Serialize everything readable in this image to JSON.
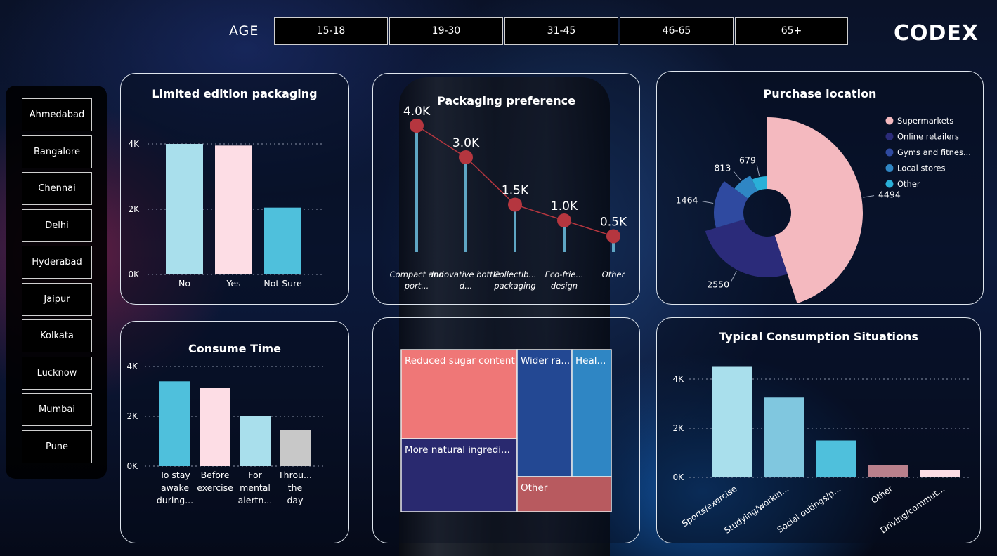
{
  "age": {
    "label": "AGE",
    "buttons": [
      "15-18",
      "19-30",
      "31-45",
      "46-65",
      "65+"
    ]
  },
  "logo": "CODEX",
  "cities": [
    "Ahmedabad",
    "Bangalore",
    "Chennai",
    "Delhi",
    "Hyderabad",
    "Jaipur",
    "Kolkata",
    "Lucknow",
    "Mumbai",
    "Pune"
  ],
  "colors": {
    "light_blue": "#a9dfec",
    "pink": "#fddde5",
    "cyan": "#4fc0dc",
    "grey": "#c8c8c8",
    "red": "#b5363f",
    "pie_pink": "#f4b9bf",
    "navy": "#2b2b7a",
    "blue": "#2f4aa0",
    "mid_blue": "#2f86c4",
    "sky": "#2ab0d8",
    "treemap_salmon": "#ef7777",
    "treemap_blue1": "#234893",
    "treemap_blue2": "#2f86c4",
    "treemap_navy": "#29296f",
    "treemap_rose": "#b85a5f"
  },
  "chart_data": [
    {
      "id": "limited",
      "type": "bar",
      "title": "Limited edition packaging",
      "categories": [
        "No",
        "Yes",
        "Not Sure"
      ],
      "values": [
        4000,
        3950,
        2050
      ],
      "yticks": [
        "0K",
        "2K",
        "4K"
      ],
      "ylim": [
        0,
        4000
      ],
      "grid": true
    },
    {
      "id": "packaging",
      "type": "line",
      "title": "Packaging preference",
      "categories": [
        "Compact and port...",
        "Innovative bottle d...",
        "Collectib... packaging",
        "Eco-frie... design",
        "Other"
      ],
      "values": [
        4.0,
        3.0,
        1.5,
        1.0,
        0.5
      ],
      "data_labels": [
        "4.0K",
        "3.0K",
        "1.5K",
        "1.0K",
        "0.5K"
      ]
    },
    {
      "id": "purchase",
      "type": "pie",
      "title": "Purchase location",
      "slices": [
        {
          "name": "Supermarkets",
          "value": 4494
        },
        {
          "name": "Online retailers",
          "value": 2550
        },
        {
          "name": "Gyms and fitnes...",
          "value": 1464
        },
        {
          "name": "Local stores",
          "value": 813
        },
        {
          "name": "Other",
          "value": 679
        }
      ],
      "legend": "right"
    },
    {
      "id": "consume",
      "type": "bar",
      "title": "Consume Time",
      "categories": [
        "To stay awake during...",
        "Before exercise",
        "For mental alertn...",
        "Throu... the day"
      ],
      "values": [
        3400,
        3150,
        2000,
        1450
      ],
      "yticks": [
        "0K",
        "2K",
        "4K"
      ],
      "ylim": [
        0,
        4000
      ],
      "grid": true
    },
    {
      "id": "treemap",
      "type": "heatmap",
      "title": "",
      "cells": [
        {
          "label": "Reduced sugar content"
        },
        {
          "label": "More natural ingredi..."
        },
        {
          "label": "Wider ra..."
        },
        {
          "label": "Heal..."
        },
        {
          "label": "Other"
        }
      ]
    },
    {
      "id": "situations",
      "type": "bar",
      "title": "Typical Consumption Situations",
      "categories": [
        "Sports/exercise",
        "Studying/workin...",
        "Social outings/p...",
        "Other",
        "Driving/commut..."
      ],
      "values": [
        4500,
        3250,
        1500,
        500,
        300
      ],
      "yticks": [
        "0K",
        "2K",
        "4K"
      ],
      "ylim": [
        0,
        4000
      ],
      "grid": true
    }
  ]
}
